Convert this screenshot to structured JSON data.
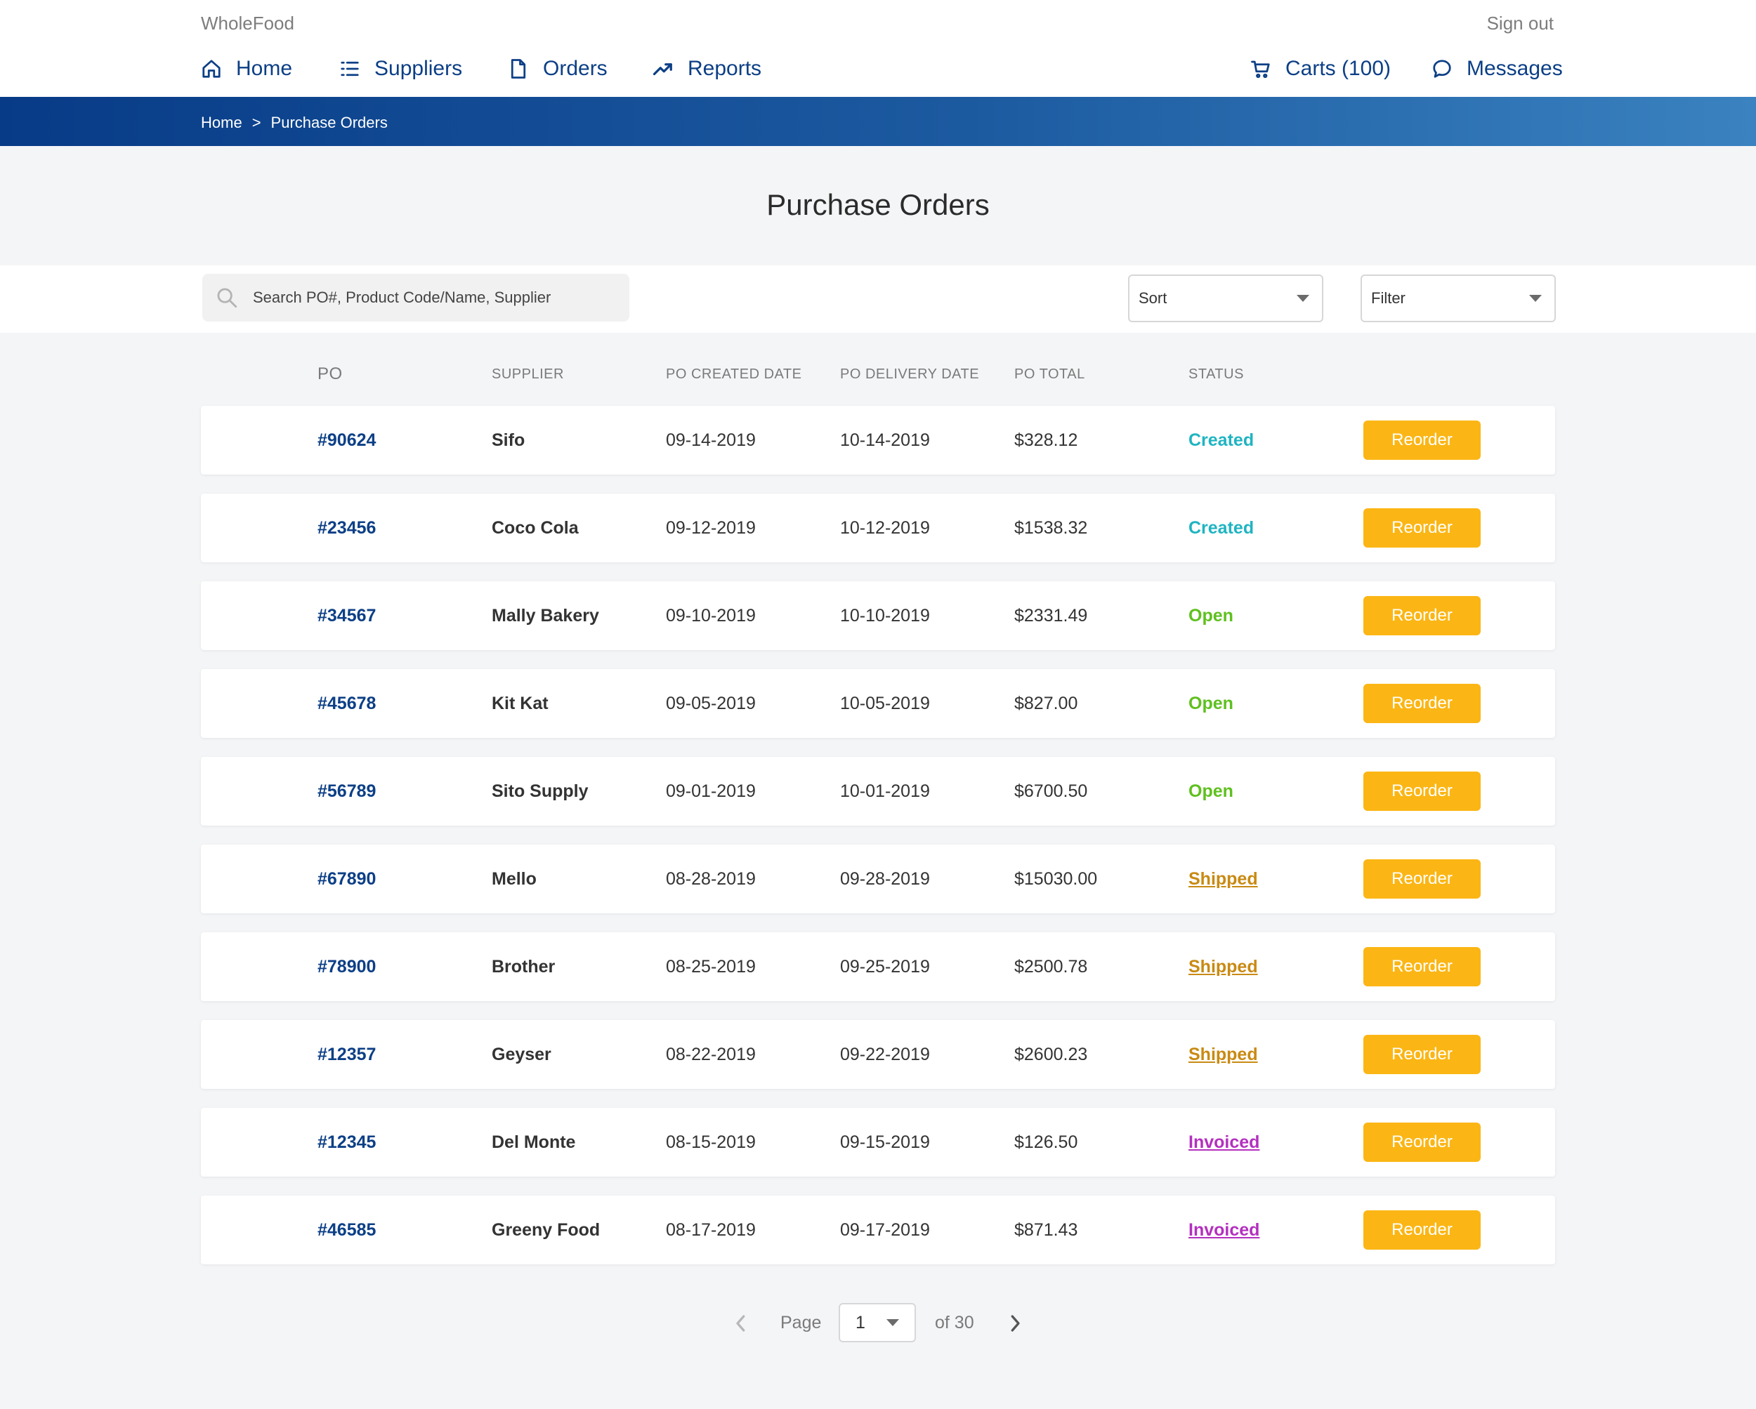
{
  "header": {
    "brand": "WholeFood",
    "sign_out": "Sign out",
    "nav": [
      {
        "label": "Home",
        "icon": "home-icon"
      },
      {
        "label": "Suppliers",
        "icon": "list-icon"
      },
      {
        "label": "Orders",
        "icon": "document-icon"
      },
      {
        "label": "Reports",
        "icon": "trend-icon"
      }
    ],
    "carts_label": "Carts (100)",
    "messages_label": "Messages"
  },
  "breadcrumb": {
    "items": [
      "Home",
      "Purchase Orders"
    ],
    "separator": ">"
  },
  "page_title": "Purchase Orders",
  "toolbar": {
    "search_placeholder": "Search PO#, Product Code/Name, Supplier",
    "sort_label": "Sort",
    "filter_label": "Filter"
  },
  "table": {
    "columns": [
      "PO",
      "SUPPLIER",
      "PO CREATED DATE",
      "PO DELIVERY DATE",
      "PO TOTAL",
      "STATUS"
    ],
    "action_label": "Reorder",
    "rows": [
      {
        "po": "#90624",
        "supplier": "Sifo",
        "created": "09-14-2019",
        "delivery": "10-14-2019",
        "total": "$328.12",
        "status": "Created"
      },
      {
        "po": "#23456",
        "supplier": "Coco Cola",
        "created": "09-12-2019",
        "delivery": "10-12-2019",
        "total": "$1538.32",
        "status": "Created"
      },
      {
        "po": "#34567",
        "supplier": "Mally Bakery",
        "created": "09-10-2019",
        "delivery": "10-10-2019",
        "total": "$2331.49",
        "status": "Open"
      },
      {
        "po": "#45678",
        "supplier": "Kit Kat",
        "created": "09-05-2019",
        "delivery": "10-05-2019",
        "total": "$827.00",
        "status": "Open"
      },
      {
        "po": "#56789",
        "supplier": "Sito Supply",
        "created": "09-01-2019",
        "delivery": "10-01-2019",
        "total": "$6700.50",
        "status": "Open"
      },
      {
        "po": "#67890",
        "supplier": "Mello",
        "created": "08-28-2019",
        "delivery": "09-28-2019",
        "total": "$15030.00",
        "status": "Shipped"
      },
      {
        "po": "#78900",
        "supplier": "Brother",
        "created": "08-25-2019",
        "delivery": "09-25-2019",
        "total": "$2500.78",
        "status": "Shipped"
      },
      {
        "po": "#12357",
        "supplier": "Geyser",
        "created": "08-22-2019",
        "delivery": "09-22-2019",
        "total": "$2600.23",
        "status": "Shipped"
      },
      {
        "po": "#12345",
        "supplier": "Del Monte",
        "created": "08-15-2019",
        "delivery": "09-15-2019",
        "total": "$126.50",
        "status": "Invoiced"
      },
      {
        "po": "#46585",
        "supplier": "Greeny Food",
        "created": "08-17-2019",
        "delivery": "09-17-2019",
        "total": "$871.43",
        "status": "Invoiced"
      }
    ]
  },
  "pagination": {
    "page_label": "Page",
    "current_page": "1",
    "of_label": "of 30"
  },
  "colors": {
    "brand_blue": "#0c3f86",
    "accent_yellow": "#fbb615",
    "status_created": "#1fb4c2",
    "status_open": "#5fc01f",
    "status_shipped": "#c98a13",
    "status_invoiced": "#b430bf"
  }
}
